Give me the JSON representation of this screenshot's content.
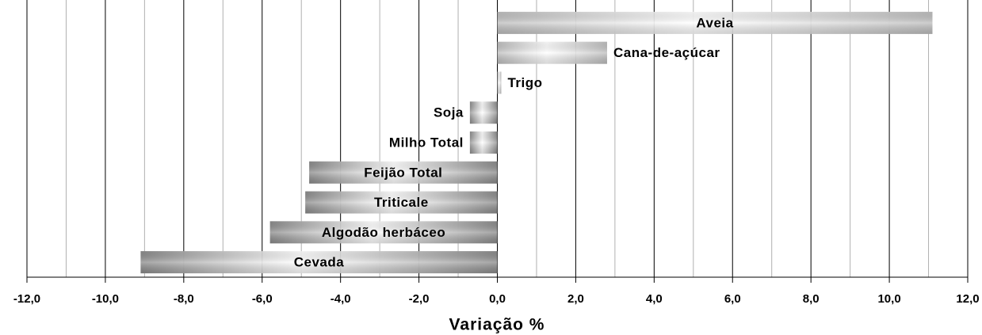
{
  "chart_data": {
    "type": "hbar",
    "x_label": "Variação %",
    "categories": [
      "Aveia",
      "Cana-de-açúcar",
      "Trigo",
      "Soja",
      "Milho Total",
      "Feijão Total",
      "Triticale",
      "Algodão herbáceo",
      "Cevada"
    ],
    "values": [
      11.1,
      2.8,
      0.1,
      -0.7,
      -0.7,
      -4.8,
      -4.9,
      -5.8,
      -9.1
    ],
    "color_positive": "#bdbdbd",
    "color_negative": "#8a8a8a",
    "xlim": [
      -12,
      12
    ],
    "xticks": [
      {
        "value": -12,
        "label": "-12,0"
      },
      {
        "value": -10,
        "label": "-10,0"
      },
      {
        "value": -8,
        "label": "-8,0"
      },
      {
        "value": -6,
        "label": "-6,0"
      },
      {
        "value": -4,
        "label": "-4,0"
      },
      {
        "value": -2,
        "label": "-2,0"
      },
      {
        "value": 0,
        "label": "0,0"
      },
      {
        "value": 2,
        "label": "2,0"
      },
      {
        "value": 4,
        "label": "4,0"
      },
      {
        "value": 6,
        "label": "6,0"
      },
      {
        "value": 8,
        "label": "8,0"
      },
      {
        "value": 10,
        "label": "10,0"
      },
      {
        "value": 12,
        "label": "12,0"
      }
    ],
    "xticks_minor": [
      -11,
      -9,
      -7,
      -5,
      -3,
      -1,
      1,
      3,
      5,
      7,
      9,
      11
    ],
    "grid": true
  }
}
